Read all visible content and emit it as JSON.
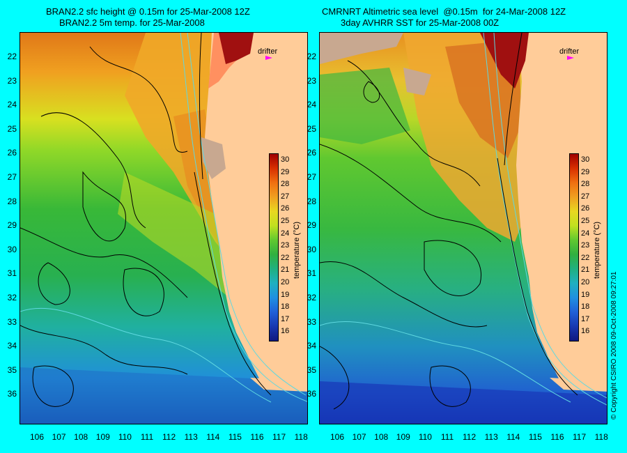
{
  "left_panel": {
    "title_line1": "BRAN2.2 sfc height @ 0.15m for 25-Mar-2008 12Z",
    "title_line2": "BRAN2.2 5m temp. for 25-Mar-2008"
  },
  "right_panel": {
    "title_line1": "CMRNRT Altimetric sea level  @0.15m  for 24-Mar-2008 12Z",
    "title_line2": "3day AVHRR SST for 25-Mar-2008 00Z"
  },
  "y_axis_labels": [
    "22",
    "23",
    "24",
    "25",
    "26",
    "27",
    "28",
    "29",
    "30",
    "31",
    "32",
    "33",
    "34",
    "35",
    "36"
  ],
  "x_axis_labels": [
    "106",
    "107",
    "108",
    "109",
    "110",
    "111",
    "112",
    "113",
    "114",
    "115",
    "116",
    "117",
    "118"
  ],
  "colorbar": {
    "title": "temperature (°C)",
    "ticks": [
      "30",
      "29",
      "28",
      "27",
      "26",
      "25",
      "24",
      "23",
      "22",
      "21",
      "20",
      "19",
      "18",
      "17",
      "16"
    ]
  },
  "drifter_label": "drifter",
  "copyright": "© Copyright CSIRO 2008   09-Oct-2008 09:27:01",
  "colors": {
    "background": "#00ffff",
    "land": "#ffcc99",
    "drifter": "#ff00ff",
    "contour": "#000000",
    "isobath": "#5fd8e0"
  }
}
